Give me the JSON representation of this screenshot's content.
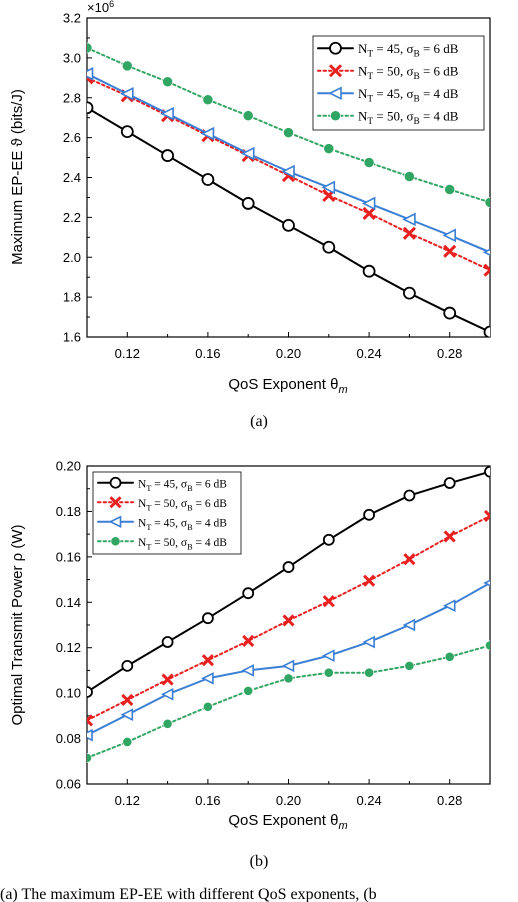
{
  "chart_data": [
    {
      "type": "line",
      "panel_label": "(a)",
      "xlabel": "QoS Exponent θ",
      "xlabel_sub": "m",
      "ylabel": "Maximum EP-EE ϑ (bits/J)",
      "y_multiplier": "×10",
      "y_multiplier_exp": "6",
      "xlim": [
        0.1,
        0.3
      ],
      "ylim": [
        1.6,
        3.2
      ],
      "xticks": [
        0.12,
        0.16,
        0.2,
        0.24,
        0.28
      ],
      "xtick_labels": [
        "0.12",
        "0.16",
        "0.20",
        "0.24",
        "0.28"
      ],
      "yticks": [
        1.6,
        1.8,
        2.0,
        2.2,
        2.4,
        2.6,
        2.8,
        3.0,
        3.2
      ],
      "ytick_labels": [
        "1.6",
        "1.8",
        "2.0",
        "2.2",
        "2.4",
        "2.6",
        "2.8",
        "3.0",
        "3.2"
      ],
      "legend_position": "top-right",
      "grid": false,
      "x": [
        0.1,
        0.12,
        0.14,
        0.16,
        0.18,
        0.2,
        0.22,
        0.24,
        0.26,
        0.28,
        0.3
      ],
      "series": [
        {
          "name": "N_T = 45, σ_B = 6 dB",
          "nt": "45",
          "sb": "6",
          "color": "#000000",
          "dash": "solid",
          "marker": "circle",
          "values": [
            2.75,
            2.63,
            2.51,
            2.39,
            2.27,
            2.16,
            2.05,
            1.93,
            1.82,
            1.72,
            1.625
          ]
        },
        {
          "name": "N_T = 50, σ_B = 6 dB",
          "nt": "50",
          "sb": "6",
          "color": "#e8201f",
          "dash": "dotted",
          "marker": "x",
          "values": [
            2.9,
            2.81,
            2.71,
            2.61,
            2.51,
            2.41,
            2.31,
            2.22,
            2.12,
            2.03,
            1.935
          ]
        },
        {
          "name": "N_T = 45, σ_B = 4 dB",
          "nt": "45",
          "sb": "4",
          "color": "#3a7fd5",
          "dash": "solid",
          "marker": "triangle-left",
          "values": [
            2.92,
            2.82,
            2.72,
            2.62,
            2.52,
            2.43,
            2.35,
            2.27,
            2.19,
            2.11,
            2.025
          ]
        },
        {
          "name": "N_T = 50, σ_B = 4 dB",
          "nt": "50",
          "sb": "4",
          "color": "#31a563",
          "dash": "dotted",
          "marker": "circle-filled",
          "values": [
            3.05,
            2.96,
            2.88,
            2.79,
            2.71,
            2.625,
            2.545,
            2.475,
            2.405,
            2.34,
            2.275
          ]
        }
      ]
    },
    {
      "type": "line",
      "panel_label": "(b)",
      "xlabel": "QoS Exponent θ",
      "xlabel_sub": "m",
      "ylabel": "Optimal Transmit Power ρ (W)",
      "xlim": [
        0.1,
        0.3
      ],
      "ylim": [
        0.06,
        0.2
      ],
      "xticks": [
        0.12,
        0.16,
        0.2,
        0.24,
        0.28
      ],
      "xtick_labels": [
        "0.12",
        "0.16",
        "0.20",
        "0.24",
        "0.28"
      ],
      "yticks": [
        0.06,
        0.08,
        0.1,
        0.12,
        0.14,
        0.16,
        0.18,
        0.2
      ],
      "ytick_labels": [
        "0.06",
        "0.08",
        "0.10",
        "0.12",
        "0.14",
        "0.16",
        "0.18",
        "0.20"
      ],
      "legend_position": "top-left",
      "grid": false,
      "x": [
        0.1,
        0.12,
        0.14,
        0.16,
        0.18,
        0.2,
        0.22,
        0.24,
        0.26,
        0.28,
        0.3
      ],
      "series": [
        {
          "name": "N_T = 45, σ_B = 6 dB",
          "nt": "45",
          "sb": "6",
          "color": "#000000",
          "dash": "solid",
          "marker": "circle",
          "values": [
            0.1005,
            0.112,
            0.1225,
            0.133,
            0.144,
            0.1555,
            0.1675,
            0.1785,
            0.187,
            0.1925,
            0.1975
          ]
        },
        {
          "name": "N_T = 50, σ_B = 6 dB",
          "nt": "50",
          "sb": "6",
          "color": "#e8201f",
          "dash": "dotted",
          "marker": "x",
          "values": [
            0.088,
            0.097,
            0.106,
            0.1145,
            0.123,
            0.132,
            0.1405,
            0.1495,
            0.159,
            0.169,
            0.178
          ]
        },
        {
          "name": "N_T = 45, σ_B = 4 dB",
          "nt": "45",
          "sb": "4",
          "color": "#3a7fd5",
          "dash": "solid",
          "marker": "triangle-left",
          "values": [
            0.0815,
            0.0905,
            0.0995,
            0.1065,
            0.11,
            0.112,
            0.1165,
            0.1225,
            0.13,
            0.1385,
            0.1485
          ]
        },
        {
          "name": "N_T = 50, σ_B = 4 dB",
          "nt": "50",
          "sb": "4",
          "color": "#31a563",
          "dash": "dotted",
          "marker": "circle-filled",
          "values": [
            0.0715,
            0.0785,
            0.0865,
            0.094,
            0.101,
            0.1065,
            0.109,
            0.109,
            0.112,
            0.116,
            0.121
          ]
        }
      ]
    }
  ],
  "caption_fragment": "(a) The maximum EP-EE with different QoS exponents, (b"
}
